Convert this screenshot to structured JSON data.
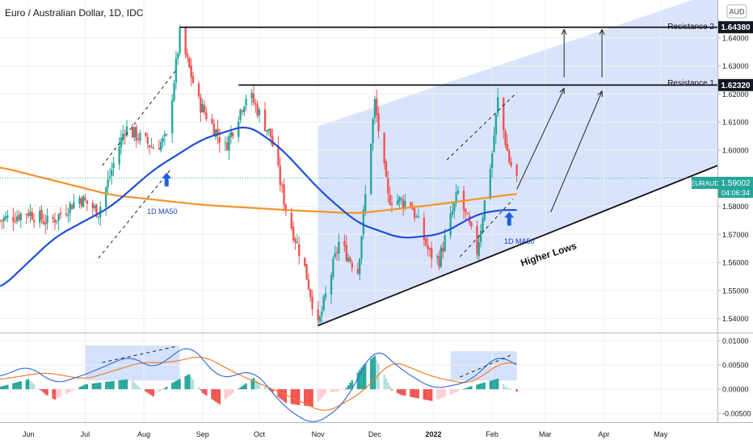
{
  "title": "Euro / Australian Dollar, 1D, IDC",
  "currency_badge": "AUD",
  "symbol_badge": {
    "symbol": "EURAUD",
    "price": "1.59002",
    "countdown": "04:06:34"
  },
  "resistance": [
    {
      "name": "Resistance 2",
      "value_label": "1.64380",
      "value": 1.6438
    },
    {
      "name": "Resistance 1",
      "value_label": "1.62320",
      "value": 1.6232
    }
  ],
  "annotations": {
    "ma50_left": "1D MA50",
    "ma50_right": "1D MA50",
    "higher_lows": "Higher Lows"
  },
  "colors": {
    "up": "#26a69a",
    "down": "#ef5350",
    "ma50": "#1e4fd8",
    "ma200": "#f5922a",
    "macd": "#3b6fe0",
    "signal": "#f57c2a",
    "channel": "#c9d9fb",
    "arrow": "#1e5fe0"
  },
  "chart_data": [
    {
      "type": "candlestick",
      "title": "Euro / Australian Dollar, 1D, IDC",
      "x_labels": [
        "Jun",
        "Jul",
        "Aug",
        "Sep",
        "Oct",
        "Nov",
        "Dec",
        "2022",
        "Feb",
        "Mar",
        "Apr",
        "May"
      ],
      "y_ticks": [
        "1.64000",
        "1.63000",
        "1.62000",
        "1.61000",
        "1.60000",
        "1.58000",
        "1.57000",
        "1.56000",
        "1.55000",
        "1.54000"
      ],
      "ylim": [
        1.535,
        1.6535
      ],
      "close_keypoints": [
        {
          "date": "2021-05-17",
          "close": 1.575
        },
        {
          "date": "2021-06-01",
          "close": 1.578
        },
        {
          "date": "2021-06-12",
          "close": 1.574
        },
        {
          "date": "2021-06-28",
          "close": 1.583
        },
        {
          "date": "2021-07-08",
          "close": 1.578
        },
        {
          "date": "2021-07-22",
          "close": 1.608
        },
        {
          "date": "2021-08-06",
          "close": 1.601
        },
        {
          "date": "2021-08-13",
          "close": 1.604
        },
        {
          "date": "2021-08-20",
          "close": 1.641
        },
        {
          "date": "2021-08-30",
          "close": 1.617
        },
        {
          "date": "2021-09-06",
          "close": 1.609
        },
        {
          "date": "2021-09-13",
          "close": 1.601
        },
        {
          "date": "2021-09-25",
          "close": 1.621
        },
        {
          "date": "2021-10-07",
          "close": 1.605
        },
        {
          "date": "2021-10-15",
          "close": 1.579
        },
        {
          "date": "2021-10-25",
          "close": 1.558
        },
        {
          "date": "2021-11-01",
          "close": 1.537
        },
        {
          "date": "2021-11-12",
          "close": 1.567
        },
        {
          "date": "2021-11-22",
          "close": 1.557
        },
        {
          "date": "2021-12-01",
          "close": 1.617
        },
        {
          "date": "2021-12-08",
          "close": 1.583
        },
        {
          "date": "2021-12-20",
          "close": 1.581
        },
        {
          "date": "2021-12-30",
          "close": 1.563
        },
        {
          "date": "2022-01-04",
          "close": 1.561
        },
        {
          "date": "2022-01-14",
          "close": 1.585
        },
        {
          "date": "2022-01-24",
          "close": 1.564
        },
        {
          "date": "2022-02-01",
          "close": 1.599
        },
        {
          "date": "2022-02-04",
          "close": 1.618
        },
        {
          "date": "2022-02-10",
          "close": 1.596
        },
        {
          "date": "2022-02-14",
          "close": 1.59
        }
      ],
      "ma50_keypoints": [
        {
          "date": "2021-05-17",
          "value": 1.5505
        },
        {
          "date": "2021-06-15",
          "value": 1.569
        },
        {
          "date": "2021-07-15",
          "value": 1.58
        },
        {
          "date": "2021-08-06",
          "value": 1.593
        },
        {
          "date": "2021-09-01",
          "value": 1.604
        },
        {
          "date": "2021-09-25",
          "value": 1.609
        },
        {
          "date": "2021-10-12",
          "value": 1.601
        },
        {
          "date": "2021-11-03",
          "value": 1.585
        },
        {
          "date": "2021-11-22",
          "value": 1.574
        },
        {
          "date": "2021-12-15",
          "value": 1.5685
        },
        {
          "date": "2022-01-05",
          "value": 1.57
        },
        {
          "date": "2022-01-25",
          "value": 1.5775
        },
        {
          "date": "2022-02-10",
          "value": 1.579
        },
        {
          "date": "2022-02-14",
          "value": 1.5785
        }
      ],
      "ma200_keypoints": [
        {
          "date": "2021-05-17",
          "value": 1.594
        },
        {
          "date": "2021-07-15",
          "value": 1.584
        },
        {
          "date": "2021-09-01",
          "value": 1.5805
        },
        {
          "date": "2021-10-20",
          "value": 1.5785
        },
        {
          "date": "2021-11-22",
          "value": 1.5775
        },
        {
          "date": "2022-01-01",
          "value": 1.5805
        },
        {
          "date": "2022-02-14",
          "value": 1.5845
        }
      ],
      "channel": {
        "start_date": "2021-11-01",
        "lower_start": 1.5375,
        "upper_start": 1.6085,
        "end_date": "2022-05-31",
        "lower_end": 1.5945,
        "upper_end": 1.6565
      },
      "higher_lows": {
        "start_date": "2021-11-01",
        "start": 1.5375,
        "end_date": "2022-05-31",
        "end": 1.5945
      },
      "resistance_2": {
        "start_date": "2021-08-20",
        "value": 1.6438
      },
      "resistance_1": {
        "start_date": "2021-09-20",
        "value": 1.6232
      }
    },
    {
      "type": "bar+line",
      "title": "",
      "y_ticks": [
        "0.01000",
        "0.00500",
        "0.00000",
        "-0.00500"
      ],
      "ylim": [
        -0.0068,
        0.0115
      ],
      "macd_keypoints": [
        {
          "date": "2021-05-17",
          "value": 0.0025
        },
        {
          "date": "2021-06-01",
          "value": 0.005
        },
        {
          "date": "2021-06-15",
          "value": 0.001
        },
        {
          "date": "2021-07-01",
          "value": 0.003
        },
        {
          "date": "2021-07-25",
          "value": 0.007
        },
        {
          "date": "2021-08-06",
          "value": 0.004
        },
        {
          "date": "2021-08-25",
          "value": 0.0095
        },
        {
          "date": "2021-09-10",
          "value": 0.002
        },
        {
          "date": "2021-09-28",
          "value": 0.004
        },
        {
          "date": "2021-10-15",
          "value": -0.004
        },
        {
          "date": "2021-10-30",
          "value": -0.0075
        },
        {
          "date": "2021-11-15",
          "value": -0.003
        },
        {
          "date": "2021-12-01",
          "value": 0.009
        },
        {
          "date": "2021-12-15",
          "value": 0.004
        },
        {
          "date": "2022-01-01",
          "value": 0.0
        },
        {
          "date": "2022-01-20",
          "value": 0.0015
        },
        {
          "date": "2022-02-05",
          "value": 0.0075
        },
        {
          "date": "2022-02-14",
          "value": 0.0045
        }
      ],
      "signal_keypoints": [
        {
          "date": "2021-05-17",
          "value": 0.002
        },
        {
          "date": "2021-06-10",
          "value": 0.0035
        },
        {
          "date": "2021-07-01",
          "value": 0.002
        },
        {
          "date": "2021-07-30",
          "value": 0.0055
        },
        {
          "date": "2021-08-15",
          "value": 0.0055
        },
        {
          "date": "2021-09-01",
          "value": 0.007
        },
        {
          "date": "2021-09-20",
          "value": 0.003
        },
        {
          "date": "2021-10-20",
          "value": -0.002
        },
        {
          "date": "2021-11-05",
          "value": -0.005
        },
        {
          "date": "2021-11-25",
          "value": -0.0005
        },
        {
          "date": "2021-12-10",
          "value": 0.006
        },
        {
          "date": "2022-01-01",
          "value": 0.0025
        },
        {
          "date": "2022-01-20",
          "value": 0.001
        },
        {
          "date": "2022-02-08",
          "value": 0.006
        },
        {
          "date": "2022-02-14",
          "value": 0.005
        }
      ]
    }
  ]
}
